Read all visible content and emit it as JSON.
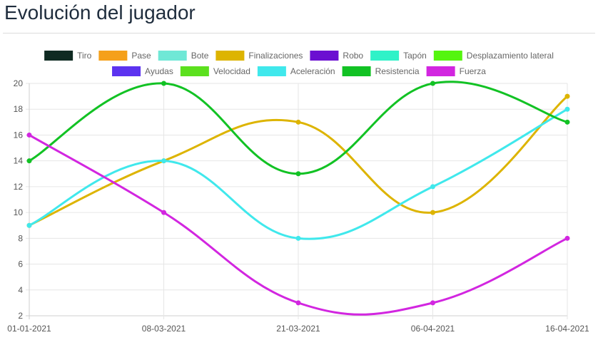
{
  "page": {
    "title": "Evolución del jugador"
  },
  "chart_data": {
    "type": "line",
    "curve": "smooth",
    "categories": [
      "01-01-2021",
      "08-03-2021",
      "21-03-2021",
      "06-04-2021",
      "16-04-2021"
    ],
    "ylim": [
      2,
      20
    ],
    "yticks": [
      2,
      4,
      6,
      8,
      10,
      12,
      14,
      16,
      18,
      20
    ],
    "grid": true,
    "legend_position": "top-center",
    "legend": [
      {
        "name": "Tiro",
        "color": "#0f2a22"
      },
      {
        "name": "Pase",
        "color": "#f5a01a"
      },
      {
        "name": "Bote",
        "color": "#6fe8d6"
      },
      {
        "name": "Finalizaciones",
        "color": "#ddb400"
      },
      {
        "name": "Robo",
        "color": "#6b0fd1"
      },
      {
        "name": "Tapón",
        "color": "#2ff2c8"
      },
      {
        "name": "Desplazamiento lateral",
        "color": "#55f50f"
      },
      {
        "name": "Ayudas",
        "color": "#5c33f0"
      },
      {
        "name": "Velocidad",
        "color": "#5ce01e"
      },
      {
        "name": "Aceleración",
        "color": "#40e8ec"
      },
      {
        "name": "Resistencia",
        "color": "#12c224"
      },
      {
        "name": "Fuerza",
        "color": "#d226e0"
      }
    ],
    "series": [
      {
        "name": "Finalizaciones",
        "color": "#ddb400",
        "values": [
          9,
          14,
          17,
          10,
          19
        ]
      },
      {
        "name": "Aceleración",
        "color": "#40e8ec",
        "values": [
          9,
          14,
          8,
          12,
          18
        ]
      },
      {
        "name": "Resistencia",
        "color": "#12c224",
        "values": [
          14,
          20,
          13,
          20,
          17
        ]
      },
      {
        "name": "Fuerza",
        "color": "#d226e0",
        "values": [
          16,
          10,
          3,
          3,
          8
        ]
      }
    ]
  }
}
